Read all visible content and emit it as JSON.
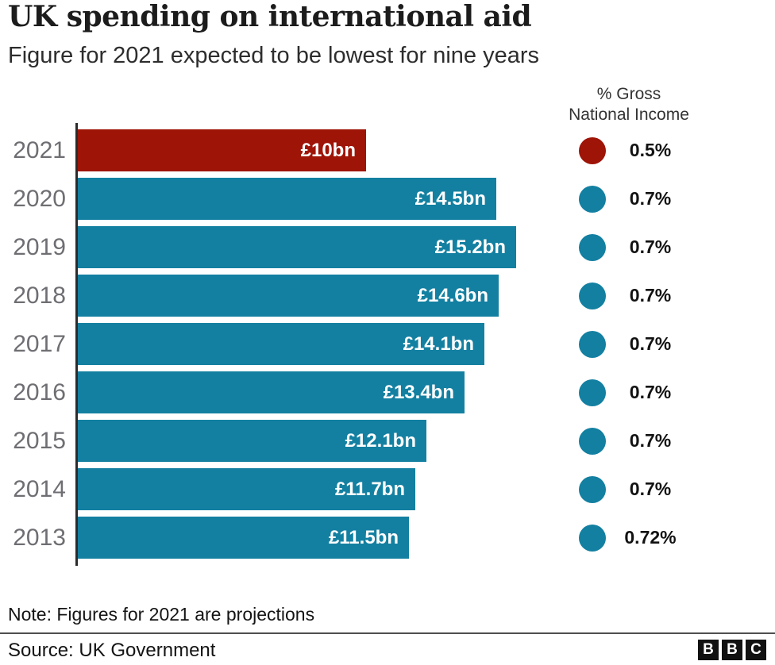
{
  "header": {
    "title": "UK spending on international aid",
    "subtitle": "Figure for 2021 expected to be lowest for nine years"
  },
  "legend": {
    "heading_line1": "% Gross",
    "heading_line2": "National Income"
  },
  "chart_data": {
    "type": "bar",
    "orientation": "horizontal",
    "title": "UK spending on international aid",
    "subtitle": "Figure for 2021 expected to be lowest for nine years",
    "categories": [
      "2021",
      "2020",
      "2019",
      "2018",
      "2017",
      "2016",
      "2015",
      "2014",
      "2013"
    ],
    "values": [
      10,
      14.5,
      15.2,
      14.6,
      14.1,
      13.4,
      12.1,
      11.7,
      11.5
    ],
    "value_unit": "£bn",
    "value_labels": [
      "£10bn",
      "£14.5bn",
      "£15.2bn",
      "£14.6bn",
      "£14.1bn",
      "£13.4bn",
      "£12.1bn",
      "£11.7bn",
      "£11.5bn"
    ],
    "gni_percent_labels": [
      "0.5%",
      "0.7%",
      "0.7%",
      "0.7%",
      "0.7%",
      "0.7%",
      "0.7%",
      "0.7%",
      "0.72%"
    ],
    "bar_colors": [
      "#9e1407",
      "#1380a1",
      "#1380a1",
      "#1380a1",
      "#1380a1",
      "#1380a1",
      "#1380a1",
      "#1380a1",
      "#1380a1"
    ],
    "highlight_color": "#9e1407",
    "default_color": "#1380a1",
    "xlim": [
      0,
      15.2
    ],
    "grid": false,
    "legend_position": "right",
    "secondary_legend_heading": "% Gross National Income"
  },
  "footer": {
    "note": "Note: Figures for 2021 are projections",
    "source": "Source: UK Government",
    "logo_letters": [
      "B",
      "B",
      "C"
    ]
  }
}
